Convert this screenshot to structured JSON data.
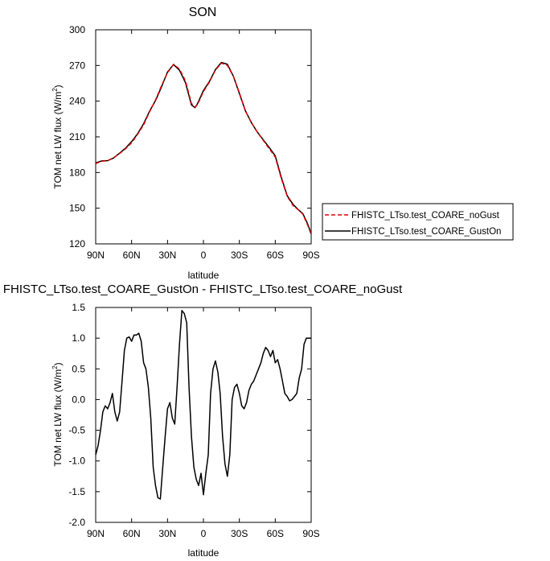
{
  "chart_data": [
    {
      "type": "line",
      "title": "SON",
      "xlabel": "latitude",
      "ylabel": "TOM net LW flux (W/m",
      "ylabel_sup": "2",
      "ylabel_close": ")",
      "xlim": [
        90,
        -90
      ],
      "ylim": [
        120,
        300
      ],
      "x_ticks": [
        90,
        60,
        30,
        0,
        -30,
        -60,
        -90
      ],
      "x_tick_labels": [
        "90N",
        "60N",
        "30N",
        "0",
        "30S",
        "60S",
        "90S"
      ],
      "y_ticks": [
        120,
        150,
        180,
        210,
        240,
        270,
        300
      ],
      "y_tick_labels": [
        "120",
        "150",
        "180",
        "210",
        "240",
        "270",
        "300"
      ],
      "legend_position": "right",
      "series": [
        {
          "name": "FHISTC_LTso.test_COARE_noGust",
          "color": "#e00000",
          "dash": "dashed",
          "x": [
            90,
            85,
            80,
            75,
            70,
            65,
            60,
            55,
            50,
            45,
            40,
            35,
            30,
            25,
            20,
            15,
            10,
            7,
            5,
            0,
            -5,
            -10,
            -15,
            -20,
            -25,
            -30,
            -35,
            -40,
            -45,
            -50,
            -55,
            -60,
            -65,
            -70,
            -75,
            -80,
            -83,
            -87,
            -90
          ],
          "y": [
            187.5,
            189.5,
            190,
            192.5,
            196,
            200,
            205,
            212,
            220,
            231,
            241,
            253,
            264,
            271,
            267,
            257,
            238,
            235,
            237,
            248,
            256,
            266,
            272,
            270,
            261,
            247,
            232,
            222,
            214,
            207,
            200,
            193,
            175,
            160,
            152,
            148,
            145,
            136,
            128
          ]
        },
        {
          "name": "FHISTC_LTso.test_COARE_GustOn",
          "color": "#000000",
          "dash": "solid",
          "x": [
            90,
            85,
            80,
            75,
            70,
            65,
            60,
            55,
            50,
            45,
            40,
            35,
            30,
            25,
            20,
            15,
            10,
            7,
            5,
            0,
            -5,
            -10,
            -15,
            -20,
            -25,
            -30,
            -35,
            -40,
            -45,
            -50,
            -55,
            -60,
            -65,
            -70,
            -75,
            -80,
            -83,
            -87,
            -90
          ],
          "y": [
            188,
            189.8,
            190,
            192.2,
            196.3,
            200.5,
            206,
            212.6,
            221,
            231.5,
            240.5,
            252,
            264.5,
            270.8,
            266,
            255.5,
            236.8,
            234.5,
            237.8,
            249,
            256.5,
            266.5,
            272.5,
            271,
            261,
            246.5,
            232,
            222,
            214,
            207.5,
            201,
            194,
            176,
            160.5,
            153,
            148,
            145.5,
            137,
            128.5
          ]
        }
      ]
    },
    {
      "type": "line",
      "title": "FHISTC_LTso.test_COARE_GustOn - FHISTC_LTso.test_COARE_noGust",
      "xlabel": "latitude",
      "ylabel": "TOM net LW flux (W/m",
      "ylabel_sup": "2",
      "ylabel_close": ")",
      "xlim": [
        90,
        -90
      ],
      "ylim": [
        -2.0,
        1.5
      ],
      "x_ticks": [
        90,
        60,
        30,
        0,
        -30,
        -60,
        -90
      ],
      "x_tick_labels": [
        "90N",
        "60N",
        "30N",
        "0",
        "30S",
        "60S",
        "90S"
      ],
      "y_ticks": [
        -2.0,
        -1.5,
        -1.0,
        -0.5,
        0.0,
        0.5,
        1.0,
        1.5
      ],
      "y_tick_labels": [
        "-2.0",
        "-1.5",
        "-1.0",
        "-0.5",
        "0.0",
        "0.5",
        "1.0",
        "1.5"
      ],
      "series": [
        {
          "color": "#000000",
          "dash": "solid",
          "x": [
            90,
            88,
            86,
            84,
            82,
            80,
            78,
            76,
            74,
            72,
            70,
            68,
            66,
            64,
            62,
            60,
            58,
            56,
            54,
            52,
            50,
            48,
            46,
            44,
            42,
            40,
            38,
            36,
            34,
            32,
            30,
            28,
            26,
            24,
            22,
            20,
            18,
            16,
            14,
            12,
            10,
            8,
            6,
            4,
            2,
            0,
            -2,
            -4,
            -6,
            -8,
            -10,
            -12,
            -14,
            -16,
            -18,
            -20,
            -22,
            -24,
            -26,
            -28,
            -30,
            -32,
            -34,
            -36,
            -38,
            -40,
            -42,
            -44,
            -46,
            -48,
            -50,
            -52,
            -54,
            -56,
            -58,
            -60,
            -62,
            -64,
            -66,
            -68,
            -70,
            -72,
            -74,
            -76,
            -78,
            -80,
            -82,
            -84,
            -86,
            -88,
            -90
          ],
          "y": [
            -0.9,
            -0.75,
            -0.5,
            -0.2,
            -0.1,
            -0.15,
            -0.05,
            0.1,
            -0.2,
            -0.35,
            -0.2,
            0.3,
            0.8,
            1.0,
            1.02,
            0.95,
            1.05,
            1.05,
            1.08,
            0.95,
            0.6,
            0.5,
            0.2,
            -0.3,
            -1.1,
            -1.4,
            -1.6,
            -1.62,
            -1.1,
            -0.6,
            -0.15,
            -0.05,
            -0.3,
            -0.4,
            0.2,
            0.9,
            1.45,
            1.4,
            1.25,
            0.2,
            -0.6,
            -1.1,
            -1.3,
            -1.4,
            -1.2,
            -1.55,
            -1.2,
            -0.9,
            0.1,
            0.5,
            0.63,
            0.45,
            0.1,
            -0.6,
            -1.05,
            -1.25,
            -0.9,
            0.0,
            0.2,
            0.25,
            0.1,
            -0.1,
            -0.15,
            -0.05,
            0.15,
            0.25,
            0.3,
            0.4,
            0.5,
            0.6,
            0.75,
            0.85,
            0.8,
            0.7,
            0.8,
            0.6,
            0.65,
            0.5,
            0.3,
            0.1,
            0.05,
            -0.02,
            0.0,
            0.05,
            0.1,
            0.35,
            0.5,
            0.9,
            1.0,
            1.0,
            1.0
          ]
        }
      ]
    }
  ]
}
